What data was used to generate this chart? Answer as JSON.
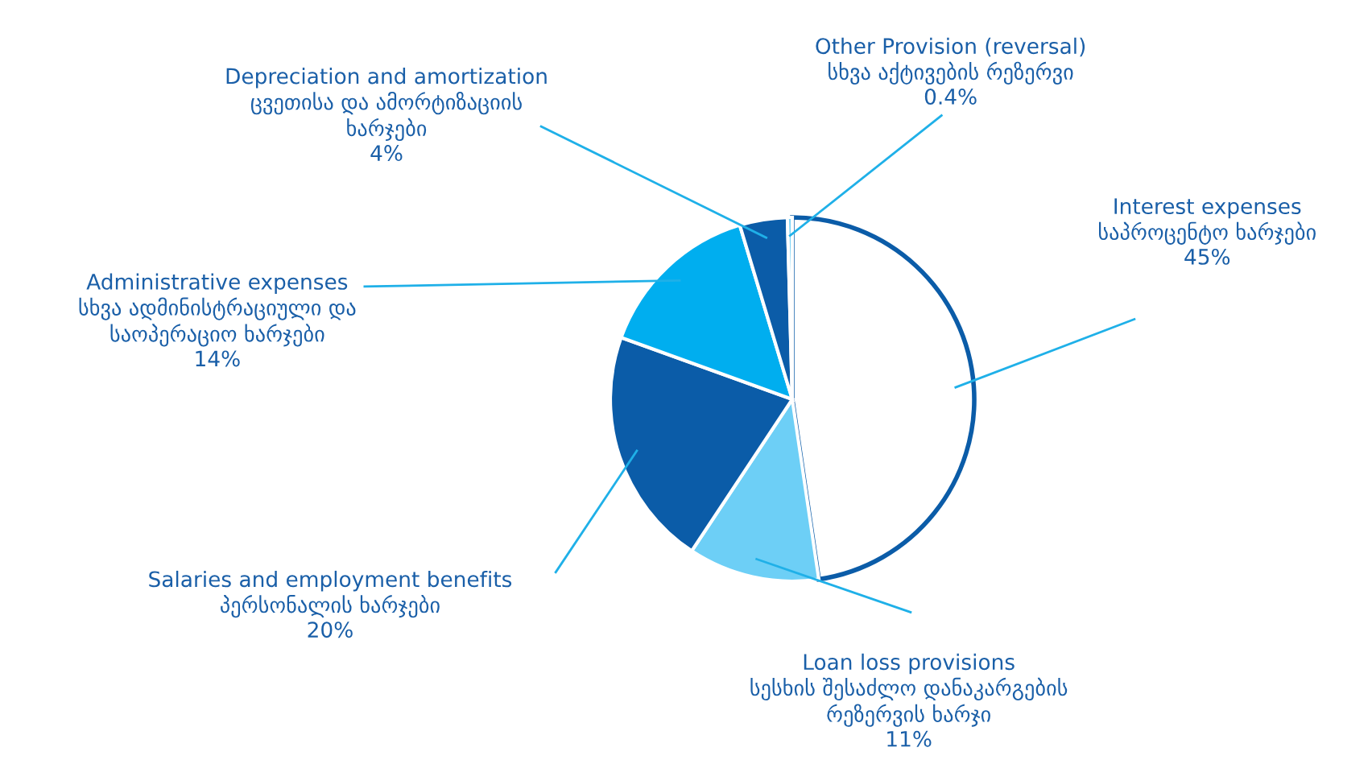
{
  "chart_data": {
    "type": "pie",
    "categories": [
      "Interest expenses\nსაპროცენტო ხარჯები",
      "Loan loss provisions\nსესხის შესაძლო დანაკარგების\nრეზერვის ხარჯი",
      "Salaries and employment benefits\nპერსონალის ხარჯები",
      "Administrative expenses\nსხვა ადმინისტრაციული და\nსაოპერაციო ხარჯები",
      "Depreciation and amortization\nცვეთისა და ამორტიზაციის\nხარჯები",
      "Other Provision (reversal)\nსხვა აქტივების რეზერვი"
    ],
    "values": [
      45,
      11,
      20,
      14,
      4,
      0.4
    ],
    "value_labels": [
      "45%",
      "11%",
      "20%",
      "14%",
      "4%",
      "0.4%"
    ],
    "colors": [
      "#ffffff",
      "#6dcff6",
      "#0b5ca8",
      "#00aeef",
      "#0b5ca8",
      "#6dcff6"
    ]
  }
}
